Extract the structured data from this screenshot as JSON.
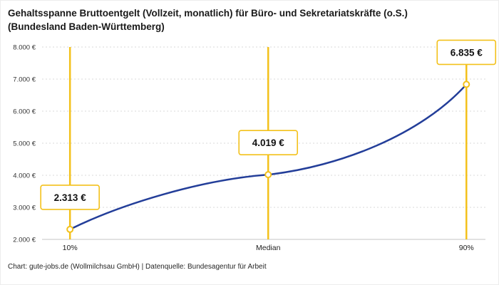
{
  "title": "Gehaltsspanne Bruttoentgelt (Vollzeit, monatlich) für Büro- und Sekretariatskräfte (o.S.) (Bundesland Baden-Württemberg)",
  "footer": "Chart: gute-jobs.de (Wollmilchsau GmbH) | Datenquelle: Bundesagentur für Arbeit",
  "colors": {
    "accent_yellow": "#F3C11B",
    "line_blue": "#233E99",
    "grid": "#D8D8D8",
    "axis": "#C6C6C6",
    "text_dark": "#1A1A1A"
  },
  "chart_data": {
    "type": "line",
    "categories": [
      "10%",
      "Median",
      "90%"
    ],
    "values": [
      2313,
      4019,
      6835
    ],
    "point_labels": [
      "2.313 €",
      "4.019 €",
      "6.835 €"
    ],
    "title": "Gehaltsspanne Bruttoentgelt (Vollzeit, monatlich) für Büro- und Sekretariatskräfte (o.S.) (Bundesland Baden-Württemberg)",
    "xlabel": "",
    "ylabel": "",
    "ylim": [
      2000,
      8000
    ],
    "y_ticks": [
      {
        "value": 2000,
        "label": "2.000 €"
      },
      {
        "value": 3000,
        "label": "3.000 €"
      },
      {
        "value": 4000,
        "label": "4.000 €"
      },
      {
        "value": 5000,
        "label": "5.000 €"
      },
      {
        "value": 6000,
        "label": "6.000 €"
      },
      {
        "value": 7000,
        "label": "7.000 €"
      },
      {
        "value": 8000,
        "label": "8.000 €"
      }
    ],
    "grid": "horizontal-dashed",
    "legend": "none",
    "annotations": "vertical marker lines at each percentile with value callout boxes"
  }
}
